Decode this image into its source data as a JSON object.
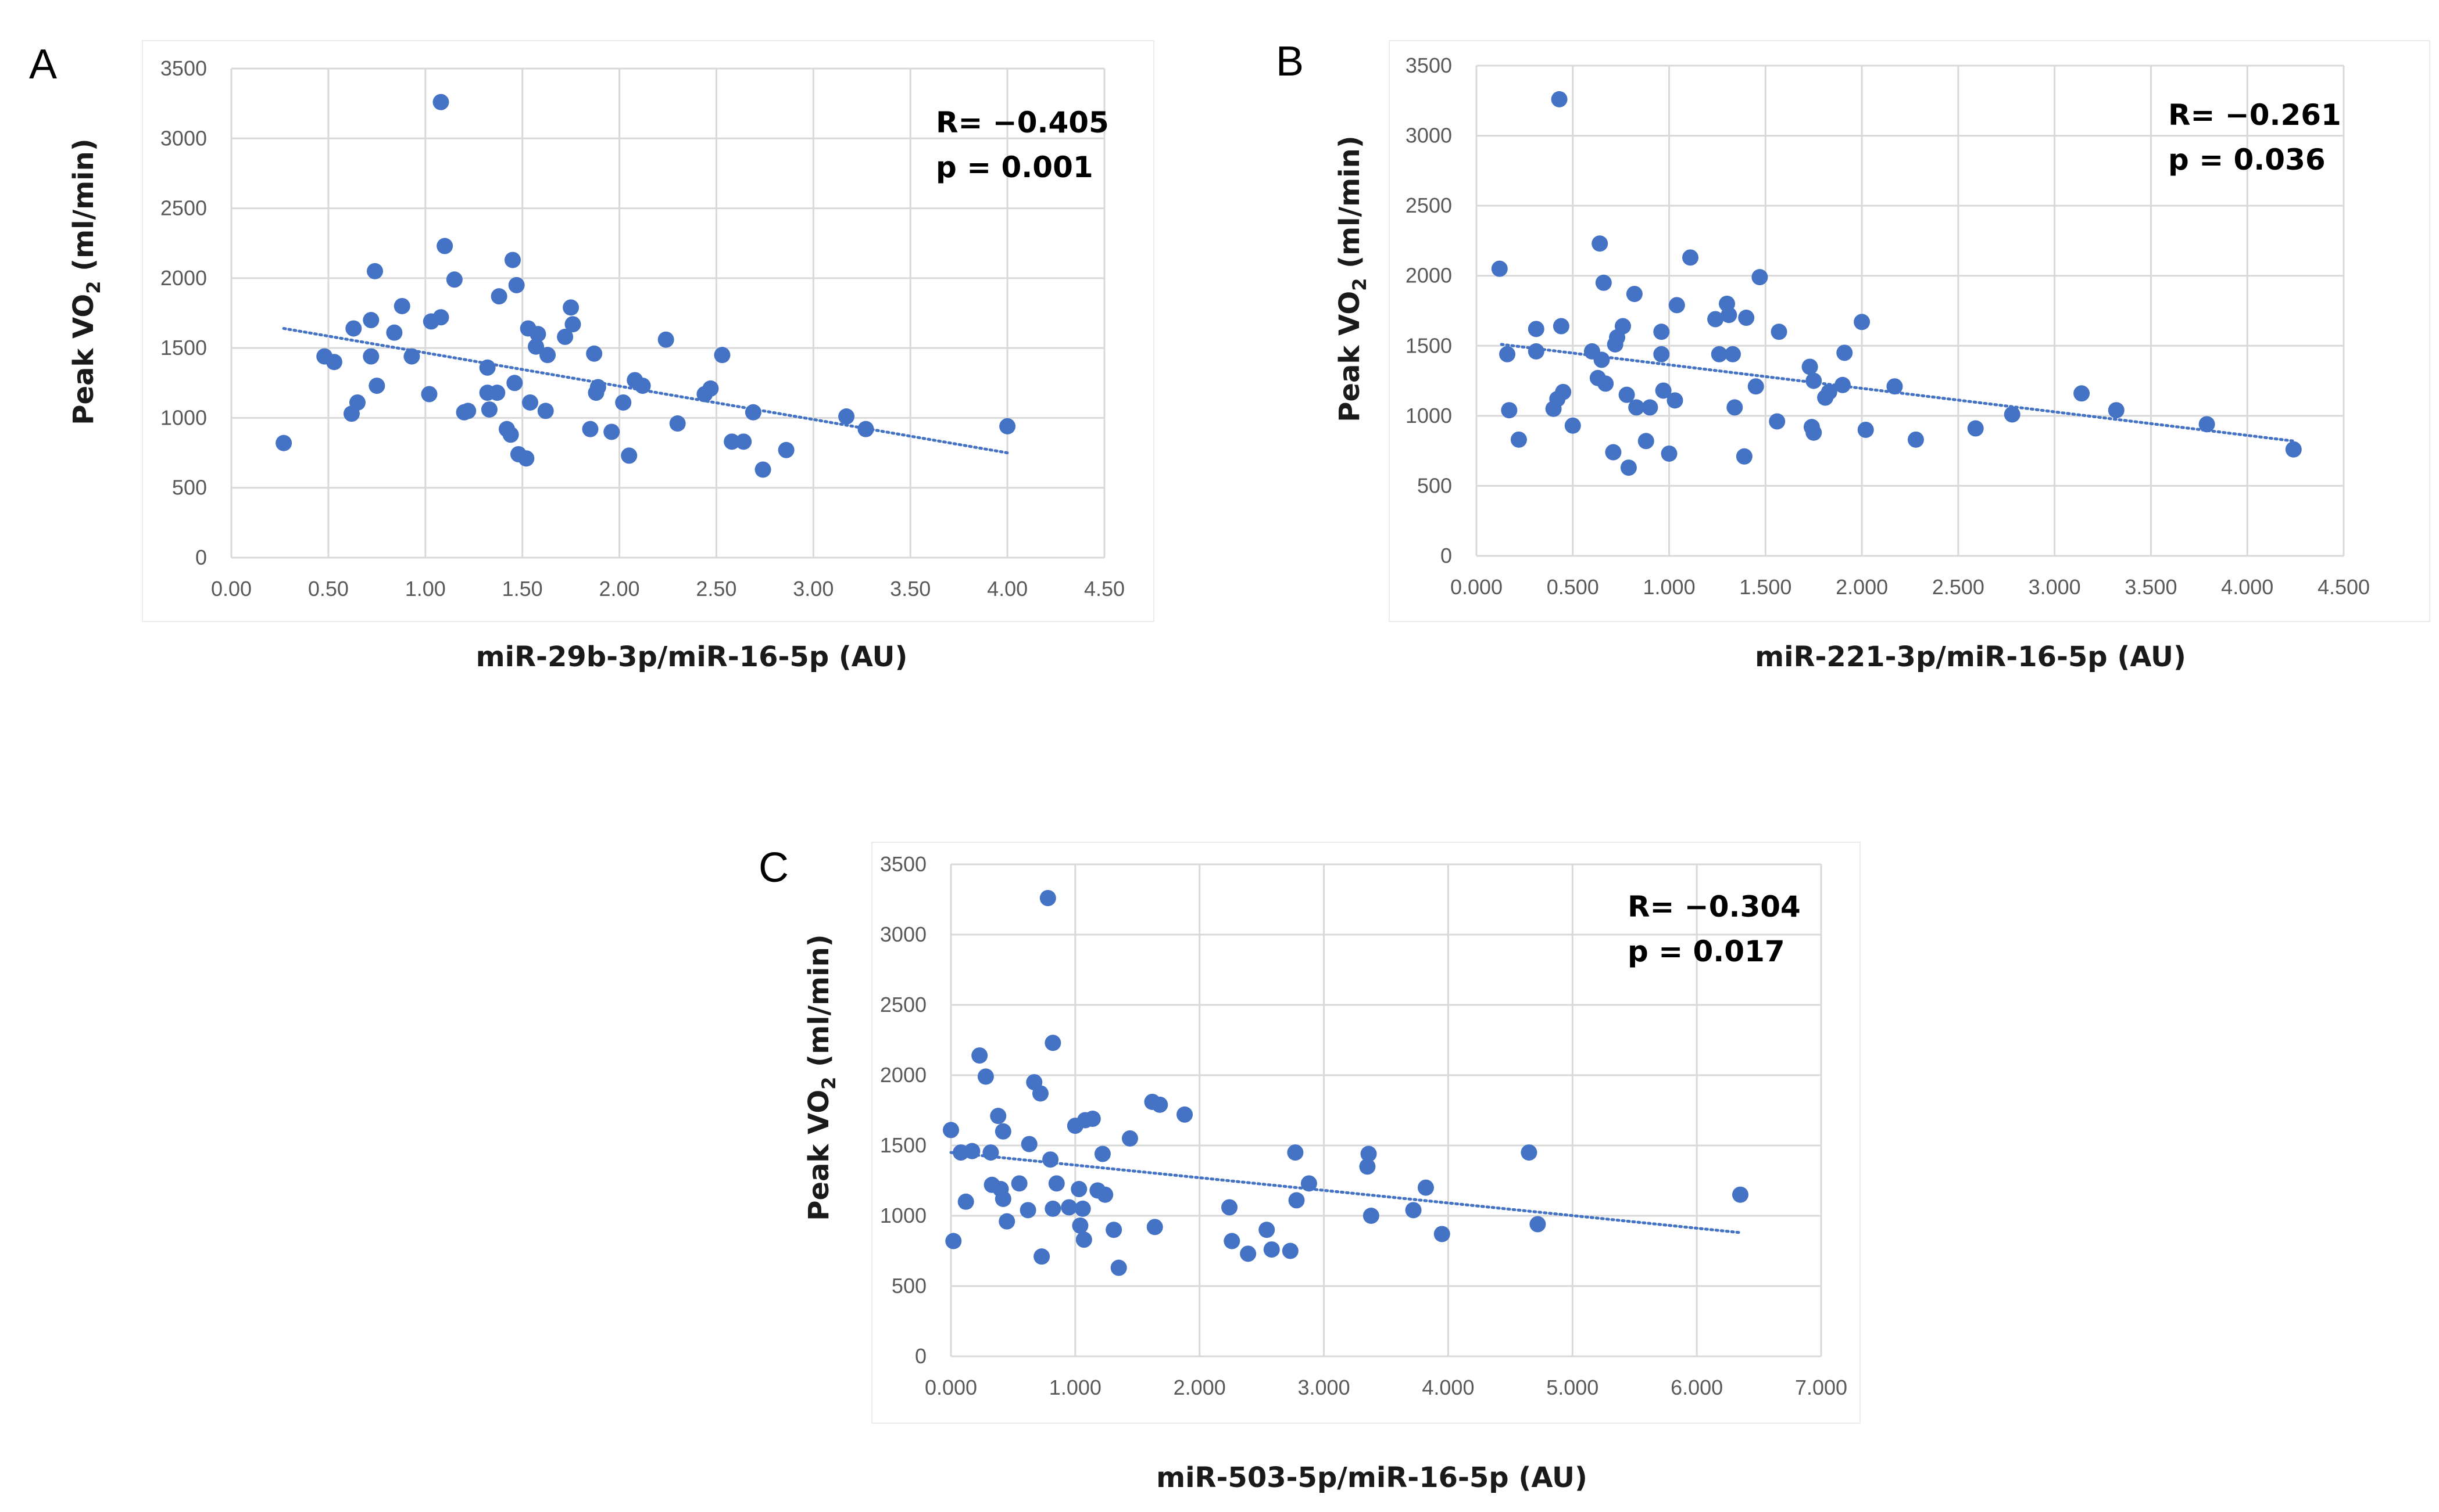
{
  "colors": {
    "marker": "#4472C4",
    "trend": "#4472C4",
    "grid": "#d9d9d9"
  },
  "chart_data": [
    {
      "type": "scatter",
      "panel": "A",
      "xlabel": "miR-29b-3p/miR-16-5p (AU)",
      "ylabel_main": "Peak VO",
      "ylabel_sub": "2",
      "ylabel_unit": " (ml/min)",
      "xlim": [
        0,
        4.5
      ],
      "ylim": [
        0,
        3500
      ],
      "x_ticks": [
        "0.00",
        "0.50",
        "1.00",
        "1.50",
        "2.00",
        "2.50",
        "3.00",
        "3.50",
        "4.00",
        "4.50"
      ],
      "y_ticks": [
        "0",
        "500",
        "1000",
        "1500",
        "2000",
        "2500",
        "3000",
        "3500"
      ],
      "stat_r": "R= −0.405",
      "stat_p": "p = 0.001",
      "trendline": {
        "x": [
          0.27,
          4.0
        ],
        "y": [
          1640,
          750
        ]
      },
      "points": [
        [
          0.27,
          820
        ],
        [
          0.48,
          1440
        ],
        [
          0.53,
          1400
        ],
        [
          0.62,
          1030
        ],
        [
          0.63,
          1640
        ],
        [
          0.65,
          1110
        ],
        [
          0.72,
          1700
        ],
        [
          0.72,
          1440
        ],
        [
          0.74,
          2050
        ],
        [
          0.75,
          1230
        ],
        [
          0.84,
          1610
        ],
        [
          0.88,
          1800
        ],
        [
          0.93,
          1440
        ],
        [
          1.02,
          1170
        ],
        [
          1.03,
          1690
        ],
        [
          1.08,
          3260
        ],
        [
          1.08,
          1720
        ],
        [
          1.1,
          2230
        ],
        [
          1.15,
          1990
        ],
        [
          1.2,
          1040
        ],
        [
          1.22,
          1050
        ],
        [
          1.32,
          1360
        ],
        [
          1.32,
          1180
        ],
        [
          1.33,
          1060
        ],
        [
          1.37,
          1180
        ],
        [
          1.38,
          1870
        ],
        [
          1.42,
          920
        ],
        [
          1.44,
          880
        ],
        [
          1.45,
          2130
        ],
        [
          1.46,
          1250
        ],
        [
          1.47,
          1950
        ],
        [
          1.48,
          740
        ],
        [
          1.52,
          710
        ],
        [
          1.53,
          1640
        ],
        [
          1.54,
          1110
        ],
        [
          1.57,
          1510
        ],
        [
          1.58,
          1600
        ],
        [
          1.62,
          1050
        ],
        [
          1.63,
          1450
        ],
        [
          1.72,
          1580
        ],
        [
          1.75,
          1790
        ],
        [
          1.76,
          1670
        ],
        [
          1.85,
          920
        ],
        [
          1.87,
          1460
        ],
        [
          1.88,
          1180
        ],
        [
          1.89,
          1220
        ],
        [
          1.96,
          900
        ],
        [
          2.02,
          1110
        ],
        [
          2.05,
          730
        ],
        [
          2.08,
          1270
        ],
        [
          2.12,
          1230
        ],
        [
          2.24,
          1560
        ],
        [
          2.3,
          960
        ],
        [
          2.44,
          1170
        ],
        [
          2.47,
          1210
        ],
        [
          2.53,
          1450
        ],
        [
          2.58,
          830
        ],
        [
          2.64,
          830
        ],
        [
          2.69,
          1040
        ],
        [
          2.74,
          630
        ],
        [
          2.86,
          770
        ],
        [
          3.17,
          1010
        ],
        [
          3.27,
          920
        ],
        [
          4.0,
          940
        ]
      ]
    },
    {
      "type": "scatter",
      "panel": "B",
      "xlabel": "miR-221-3p/miR-16-5p (AU)",
      "ylabel_main": "Peak VO",
      "ylabel_sub": "2",
      "ylabel_unit": " (ml/min)",
      "xlim": [
        0,
        4.5
      ],
      "ylim": [
        0,
        3500
      ],
      "x_ticks": [
        "0.000",
        "0.500",
        "1.000",
        "1.500",
        "2.000",
        "2.500",
        "3.000",
        "3.500",
        "4.000",
        "4.500"
      ],
      "y_ticks": [
        "0",
        "500",
        "1000",
        "1500",
        "2000",
        "2500",
        "3000",
        "3500"
      ],
      "stat_r": "R= −0.261",
      "stat_p": "p = 0.036",
      "trendline": {
        "x": [
          0.13,
          4.24
        ],
        "y": [
          1510,
          820
        ]
      },
      "points": [
        [
          0.12,
          2050
        ],
        [
          0.16,
          1440
        ],
        [
          0.17,
          1040
        ],
        [
          0.22,
          830
        ],
        [
          0.31,
          1620
        ],
        [
          0.31,
          1460
        ],
        [
          0.4,
          1050
        ],
        [
          0.42,
          1120
        ],
        [
          0.43,
          3260
        ],
        [
          0.44,
          1640
        ],
        [
          0.45,
          1170
        ],
        [
          0.5,
          930
        ],
        [
          0.6,
          1460
        ],
        [
          0.63,
          1270
        ],
        [
          0.64,
          2230
        ],
        [
          0.65,
          1400
        ],
        [
          0.66,
          1950
        ],
        [
          0.67,
          1230
        ],
        [
          0.71,
          740
        ],
        [
          0.72,
          1510
        ],
        [
          0.73,
          1560
        ],
        [
          0.76,
          1640
        ],
        [
          0.78,
          1150
        ],
        [
          0.79,
          630
        ],
        [
          0.82,
          1870
        ],
        [
          0.83,
          1060
        ],
        [
          0.88,
          820
        ],
        [
          0.9,
          1060
        ],
        [
          0.96,
          1600
        ],
        [
          0.96,
          1440
        ],
        [
          0.97,
          1180
        ],
        [
          1.0,
          730
        ],
        [
          1.03,
          1110
        ],
        [
          1.04,
          1790
        ],
        [
          1.11,
          2130
        ],
        [
          1.24,
          1690
        ],
        [
          1.26,
          1440
        ],
        [
          1.3,
          1800
        ],
        [
          1.31,
          1720
        ],
        [
          1.33,
          1440
        ],
        [
          1.34,
          1060
        ],
        [
          1.39,
          710
        ],
        [
          1.4,
          1700
        ],
        [
          1.45,
          1210
        ],
        [
          1.47,
          1990
        ],
        [
          1.56,
          960
        ],
        [
          1.57,
          1600
        ],
        [
          1.73,
          1350
        ],
        [
          1.74,
          920
        ],
        [
          1.75,
          1250
        ],
        [
          1.75,
          880
        ],
        [
          1.81,
          1130
        ],
        [
          1.83,
          1170
        ],
        [
          1.9,
          1220
        ],
        [
          1.91,
          1450
        ],
        [
          2.0,
          1670
        ],
        [
          2.02,
          900
        ],
        [
          2.17,
          1210
        ],
        [
          2.28,
          830
        ],
        [
          2.59,
          910
        ],
        [
          2.78,
          1010
        ],
        [
          3.14,
          1160
        ],
        [
          3.32,
          1040
        ],
        [
          3.79,
          940
        ],
        [
          4.24,
          760
        ]
      ]
    },
    {
      "type": "scatter",
      "panel": "C",
      "xlabel": "miR-503-5p/miR-16-5p (AU)",
      "ylabel_main": "Peak VO",
      "ylabel_sub": "2",
      "ylabel_unit": " (ml/min)",
      "xlim": [
        0,
        7
      ],
      "ylim": [
        0,
        3500
      ],
      "x_ticks": [
        "0.000",
        "1.000",
        "2.000",
        "3.000",
        "4.000",
        "5.000",
        "6.000",
        "7.000"
      ],
      "y_ticks": [
        "0",
        "500",
        "1000",
        "1500",
        "2000",
        "2500",
        "3000",
        "3500"
      ],
      "stat_r": "R= −0.304",
      "stat_p": "p = 0.017",
      "trendline": {
        "x": [
          0.0,
          6.35
        ],
        "y": [
          1450,
          880
        ]
      },
      "points": [
        [
          0.0,
          1610
        ],
        [
          0.02,
          820
        ],
        [
          0.08,
          1450
        ],
        [
          0.12,
          1100
        ],
        [
          0.17,
          1460
        ],
        [
          0.23,
          2140
        ],
        [
          0.28,
          1990
        ],
        [
          0.32,
          1450
        ],
        [
          0.33,
          1220
        ],
        [
          0.38,
          1710
        ],
        [
          0.4,
          1190
        ],
        [
          0.42,
          1600
        ],
        [
          0.42,
          1120
        ],
        [
          0.45,
          960
        ],
        [
          0.55,
          1230
        ],
        [
          0.62,
          1040
        ],
        [
          0.63,
          1510
        ],
        [
          0.67,
          1950
        ],
        [
          0.72,
          1870
        ],
        [
          0.73,
          710
        ],
        [
          0.78,
          3260
        ],
        [
          0.8,
          1400
        ],
        [
          0.82,
          2230
        ],
        [
          0.82,
          1050
        ],
        [
          0.85,
          1230
        ],
        [
          0.95,
          1060
        ],
        [
          1.0,
          1640
        ],
        [
          1.03,
          1190
        ],
        [
          1.04,
          930
        ],
        [
          1.06,
          1050
        ],
        [
          1.07,
          830
        ],
        [
          1.08,
          1680
        ],
        [
          1.14,
          1690
        ],
        [
          1.18,
          1180
        ],
        [
          1.22,
          1440
        ],
        [
          1.24,
          1150
        ],
        [
          1.31,
          900
        ],
        [
          1.35,
          630
        ],
        [
          1.44,
          1550
        ],
        [
          1.62,
          1810
        ],
        [
          1.64,
          920
        ],
        [
          1.68,
          1790
        ],
        [
          1.88,
          1720
        ],
        [
          2.24,
          1060
        ],
        [
          2.26,
          820
        ],
        [
          2.39,
          730
        ],
        [
          2.54,
          900
        ],
        [
          2.58,
          760
        ],
        [
          2.73,
          750
        ],
        [
          2.77,
          1450
        ],
        [
          2.78,
          1110
        ],
        [
          2.88,
          1230
        ],
        [
          3.35,
          1350
        ],
        [
          3.36,
          1440
        ],
        [
          3.38,
          1000
        ],
        [
          3.72,
          1040
        ],
        [
          3.82,
          1200
        ],
        [
          3.95,
          870
        ],
        [
          4.65,
          1450
        ],
        [
          4.72,
          940
        ],
        [
          6.35,
          1150
        ]
      ]
    }
  ]
}
